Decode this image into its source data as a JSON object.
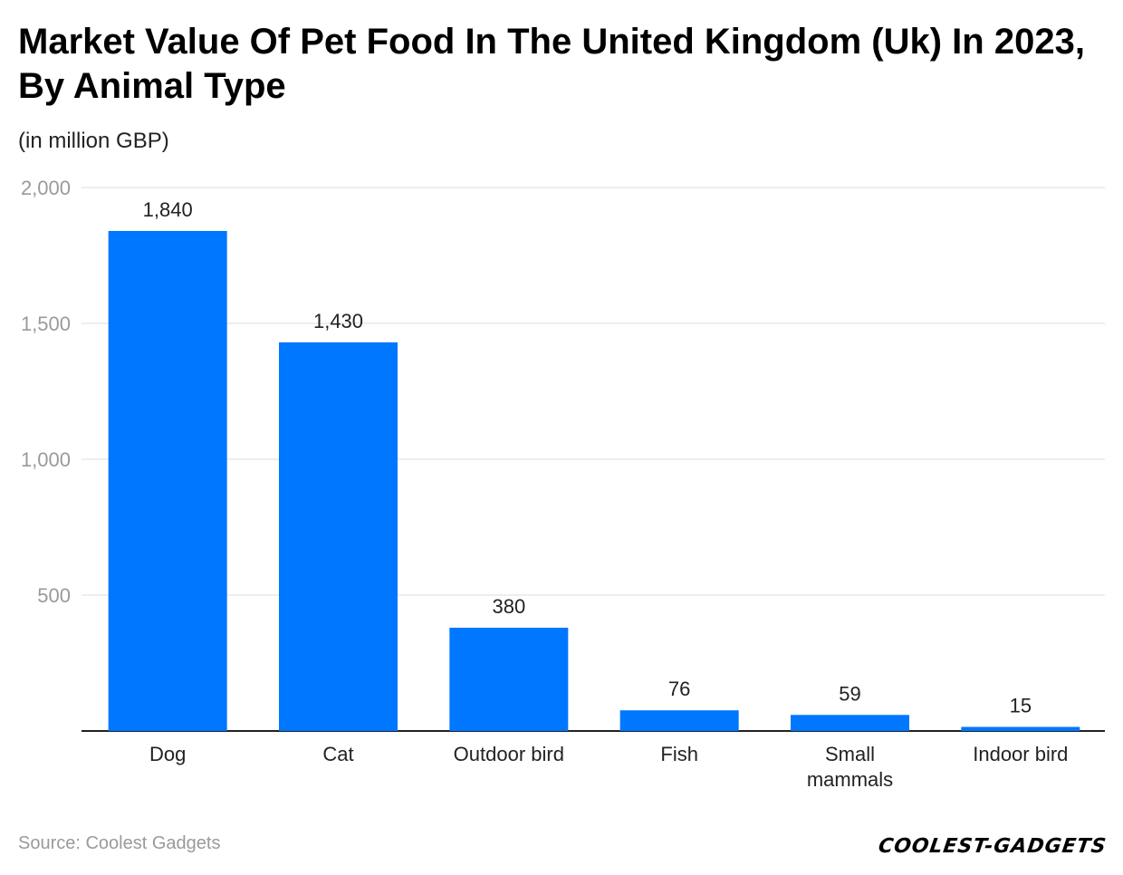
{
  "chart_data": {
    "type": "bar",
    "title": "Market Value Of Pet Food In The United Kingdom (Uk) In 2023, By Animal Type",
    "subtitle": "(in million GBP)",
    "categories": [
      "Dog",
      "Cat",
      "Outdoor bird",
      "Fish",
      "Small mammals",
      "Indoor bird"
    ],
    "category_lines": [
      [
        "Dog"
      ],
      [
        "Cat"
      ],
      [
        "Outdoor bird"
      ],
      [
        "Fish"
      ],
      [
        "Small",
        "mammals"
      ],
      [
        "Indoor bird"
      ]
    ],
    "values": [
      1840,
      1430,
      380,
      76,
      59,
      15
    ],
    "value_labels": [
      "1,840",
      "1,430",
      "380",
      "76",
      "59",
      "15"
    ],
    "xlabel": "",
    "ylabel": "",
    "ylim": [
      0,
      2000
    ],
    "yticks": [
      500,
      1000,
      1500,
      2000
    ],
    "ytick_labels": [
      "500",
      "1,000",
      "1,500",
      "2,000"
    ],
    "grid": true,
    "legend": "none",
    "bar_color": "#0077ff"
  },
  "footer": {
    "source": "Source: Coolest Gadgets",
    "brand": "COOLEST-GADGETS"
  }
}
